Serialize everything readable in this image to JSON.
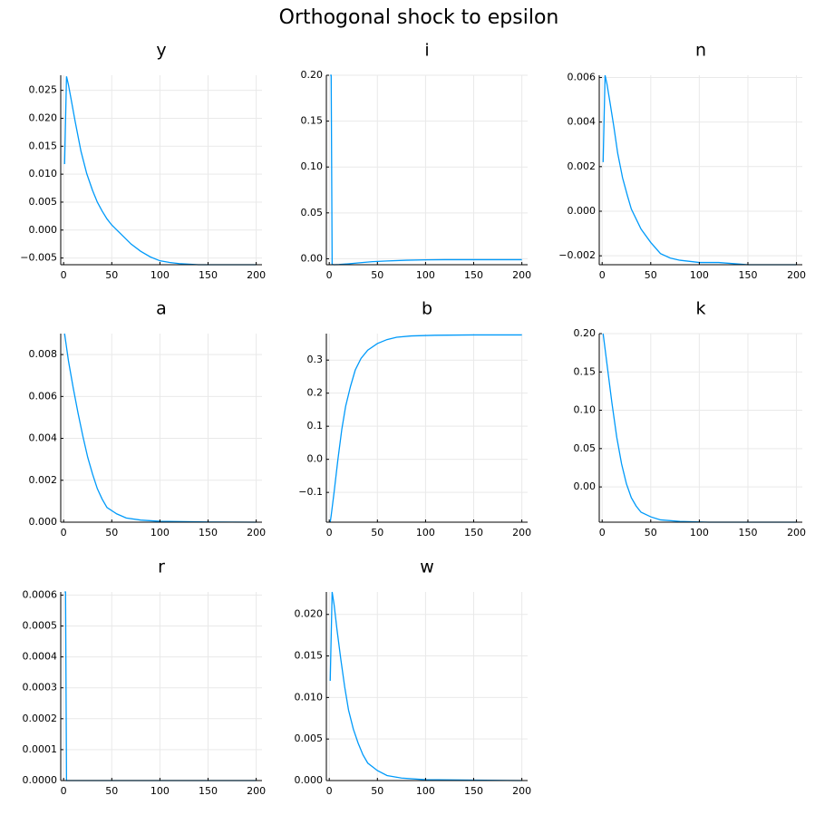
{
  "title": "Orthogonal shock to epsilon",
  "colors": {
    "line": "#009AFA",
    "grid": "#E9E9E9",
    "axis": "#000000"
  },
  "chart_data": [
    {
      "type": "line",
      "title": "y",
      "xlim": [
        -3,
        206
      ],
      "ylim": [
        -0.0062,
        0.0277
      ],
      "xticks": [
        0,
        50,
        100,
        150,
        200
      ],
      "xtick_labels": [
        "0",
        "50",
        "100",
        "150",
        "200"
      ],
      "yticks": [
        -0.005,
        0.0,
        0.005,
        0.01,
        0.015,
        0.02,
        0.025
      ],
      "ytick_labels": [
        "−0.005",
        "0.000",
        "0.005",
        "0.010",
        "0.015",
        "0.020",
        "0.025"
      ],
      "grid": true,
      "series": [
        {
          "values": [
            0.0118,
            0.0275,
            0.026,
            0.0232,
            0.0194,
            0.0141,
            0.0101,
            0.0071,
            0.005,
            0.0034,
            0.002,
            0.0009,
            -0.0008,
            -0.0025,
            -0.0038,
            -0.0048,
            -0.0055,
            -0.0058,
            -0.006,
            -0.0061,
            -0.0062,
            -0.0062,
            -0.0062,
            -0.0062
          ],
          "x": [
            1,
            3,
            5,
            8,
            12,
            18,
            24,
            30,
            35,
            40,
            45,
            50,
            60,
            70,
            80,
            90,
            100,
            110,
            120,
            130,
            140,
            160,
            180,
            200
          ]
        }
      ]
    },
    {
      "type": "line",
      "title": "i",
      "xlim": [
        -3,
        206
      ],
      "ylim": [
        -0.0065,
        0.2
      ],
      "xticks": [
        0,
        50,
        100,
        150,
        200
      ],
      "xtick_labels": [
        "0",
        "50",
        "100",
        "150",
        "200"
      ],
      "yticks": [
        0.0,
        0.05,
        0.1,
        0.15,
        0.2
      ],
      "ytick_labels": [
        "0.00",
        "0.05",
        "0.10",
        "0.15",
        "0.20"
      ],
      "grid": true,
      "series": [
        {
          "values": [
            0.2,
            0.2,
            -0.0062,
            -0.0065,
            -0.0063,
            -0.0055,
            -0.0045,
            -0.0032,
            -0.0024,
            -0.0016,
            -0.0012,
            -0.001,
            -0.001,
            -0.001,
            -0.001
          ],
          "x": [
            1,
            2,
            3,
            5,
            10,
            20,
            30,
            45,
            60,
            80,
            100,
            120,
            150,
            180,
            200
          ]
        }
      ]
    },
    {
      "type": "line",
      "title": "n",
      "xlim": [
        -3,
        206
      ],
      "ylim": [
        -0.0024,
        0.0061
      ],
      "xticks": [
        0,
        50,
        100,
        150,
        200
      ],
      "xtick_labels": [
        "0",
        "50",
        "100",
        "150",
        "200"
      ],
      "yticks": [
        -0.002,
        0.0,
        0.002,
        0.004,
        0.006
      ],
      "ytick_labels": [
        "−0.002",
        "0.000",
        "0.002",
        "0.004",
        "0.006"
      ],
      "grid": true,
      "series": [
        {
          "values": [
            0.0022,
            0.0061,
            0.0057,
            0.0049,
            0.0038,
            0.0026,
            0.0015,
            0.0007,
            0.0001,
            -0.0008,
            -0.0014,
            -0.0019,
            -0.0021,
            -0.0022,
            -0.0023,
            -0.0023,
            -0.0024,
            -0.0024,
            -0.0024
          ],
          "x": [
            1,
            3,
            5,
            8,
            12,
            16,
            21,
            26,
            30,
            40,
            50,
            60,
            70,
            80,
            100,
            120,
            150,
            180,
            200
          ]
        }
      ]
    },
    {
      "type": "line",
      "title": "a",
      "xlim": [
        -3,
        206
      ],
      "ylim": [
        0.0,
        0.009
      ],
      "xticks": [
        0,
        50,
        100,
        150,
        200
      ],
      "xtick_labels": [
        "0",
        "50",
        "100",
        "150",
        "200"
      ],
      "yticks": [
        0.0,
        0.002,
        0.004,
        0.006,
        0.008
      ],
      "ytick_labels": [
        "0.000",
        "0.002",
        "0.004",
        "0.006",
        "0.008"
      ],
      "grid": true,
      "series": [
        {
          "values": [
            0.009,
            0.0077,
            0.0064,
            0.0052,
            0.0041,
            0.0031,
            0.0023,
            0.0016,
            0.0011,
            0.0007,
            0.0004,
            0.0002,
            0.0001,
            4e-05,
            1e-05,
            0.0
          ],
          "x": [
            1,
            5,
            10,
            15,
            20,
            25,
            30,
            35,
            40,
            45,
            55,
            65,
            80,
            100,
            150,
            200
          ]
        }
      ]
    },
    {
      "type": "line",
      "title": "b",
      "xlim": [
        -3,
        206
      ],
      "ylim": [
        -0.19,
        0.38
      ],
      "xticks": [
        0,
        50,
        100,
        150,
        200
      ],
      "xtick_labels": [
        "0",
        "50",
        "100",
        "150",
        "200"
      ],
      "yticks": [
        -0.1,
        0.0,
        0.1,
        0.2,
        0.3
      ],
      "ytick_labels": [
        "−0.1",
        "0.0",
        "0.1",
        "0.2",
        "0.3"
      ],
      "grid": true,
      "series": [
        {
          "values": [
            -0.19,
            -0.17,
            -0.1,
            0.0,
            0.09,
            0.16,
            0.22,
            0.27,
            0.305,
            0.33,
            0.35,
            0.362,
            0.369,
            0.373,
            0.375,
            0.376,
            0.376
          ],
          "x": [
            1,
            2,
            5,
            9,
            13,
            17,
            22,
            27,
            33,
            40,
            50,
            60,
            70,
            85,
            110,
            150,
            200
          ]
        }
      ]
    },
    {
      "type": "line",
      "title": "k",
      "xlim": [
        -3,
        206
      ],
      "ylim": [
        -0.046,
        0.2
      ],
      "xticks": [
        0,
        50,
        100,
        150,
        200
      ],
      "xtick_labels": [
        "0",
        "50",
        "100",
        "150",
        "200"
      ],
      "yticks": [
        0.0,
        0.05,
        0.1,
        0.15,
        0.2
      ],
      "ytick_labels": [
        "0.00",
        "0.05",
        "0.10",
        "0.15",
        "0.20"
      ],
      "grid": true,
      "series": [
        {
          "values": [
            0.2,
            0.16,
            0.11,
            0.065,
            0.03,
            0.004,
            -0.014,
            -0.025,
            -0.033,
            -0.039,
            -0.043,
            -0.045,
            -0.046,
            -0.046
          ],
          "x": [
            1,
            5,
            10,
            15,
            20,
            25,
            30,
            35,
            40,
            50,
            60,
            80,
            110,
            200
          ]
        }
      ]
    },
    {
      "type": "line",
      "title": "r",
      "xlim": [
        -3,
        206
      ],
      "ylim": [
        0.0,
        0.00061
      ],
      "xticks": [
        0,
        50,
        100,
        150,
        200
      ],
      "xtick_labels": [
        "0",
        "50",
        "100",
        "150",
        "200"
      ],
      "yticks": [
        0.0,
        0.0001,
        0.0002,
        0.0003,
        0.0004,
        0.0005,
        0.0006
      ],
      "ytick_labels": [
        "0.0000",
        "0.0001",
        "0.0002",
        "0.0003",
        "0.0004",
        "0.0005",
        "0.0006"
      ],
      "grid": true,
      "series": [
        {
          "values": [
            0.00061,
            0.00061,
            0.0,
            0.0,
            0.0
          ],
          "x": [
            1,
            2,
            3,
            10,
            200
          ]
        }
      ]
    },
    {
      "type": "line",
      "title": "w",
      "xlim": [
        -3,
        206
      ],
      "ylim": [
        0.0,
        0.0227
      ],
      "xticks": [
        0,
        50,
        100,
        150,
        200
      ],
      "xtick_labels": [
        "0",
        "50",
        "100",
        "150",
        "200"
      ],
      "yticks": [
        0.0,
        0.005,
        0.01,
        0.015,
        0.02
      ],
      "ytick_labels": [
        "0.000",
        "0.005",
        "0.010",
        "0.015",
        "0.020"
      ],
      "grid": true,
      "series": [
        {
          "values": [
            0.012,
            0.0227,
            0.0212,
            0.0182,
            0.0146,
            0.0113,
            0.0085,
            0.0062,
            0.0045,
            0.0031,
            0.0021,
            0.0012,
            0.0006,
            0.0003,
            0.0001,
            0.0
          ],
          "x": [
            1,
            3,
            5,
            8,
            12,
            16,
            20,
            25,
            30,
            35,
            40,
            50,
            60,
            75,
            100,
            200
          ]
        }
      ]
    }
  ]
}
